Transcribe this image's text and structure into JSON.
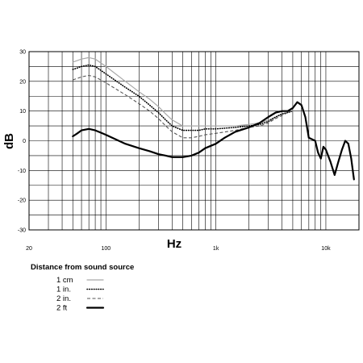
{
  "chart_data": {
    "type": "line",
    "xlabel": "Hz",
    "ylabel": "dB",
    "xscale": "log",
    "xlim": [
      20,
      20000
    ],
    "ylim": [
      -30,
      30
    ],
    "y_ticks": [
      30,
      20,
      10,
      0,
      -10,
      -20,
      -30
    ],
    "x_tick_labels": [
      {
        "value": 20,
        "label": "20"
      },
      {
        "value": 100,
        "label": "100"
      },
      {
        "value": 1000,
        "label": "1k"
      },
      {
        "value": 10000,
        "label": "10k"
      }
    ],
    "grid": true,
    "legend": {
      "title": "Distance from sound source",
      "placement": "bottom-left"
    },
    "series": [
      {
        "name": "1 cm",
        "color": "#a8a8a8",
        "style": "solid",
        "x": [
          50,
          55,
          60,
          70,
          80,
          100,
          150,
          200,
          250,
          300,
          350,
          400,
          500,
          600,
          700,
          800,
          1000,
          1500,
          2000,
          2500,
          3000,
          3500,
          4000,
          4500,
          5000
        ],
        "y": [
          26.5,
          27,
          27.5,
          28,
          27.5,
          25,
          20,
          16.5,
          14,
          11.5,
          9,
          7,
          5,
          5,
          5,
          5,
          5,
          5,
          5.5,
          6,
          7,
          8,
          9,
          9.5,
          10
        ]
      },
      {
        "name": "1 in.",
        "color": "#000000",
        "style": "dotted",
        "x": [
          50,
          55,
          60,
          70,
          80,
          100,
          150,
          200,
          250,
          300,
          350,
          400,
          500,
          600,
          700,
          800,
          1000,
          1500,
          2000,
          2500,
          3000,
          3500,
          4000,
          4500,
          5000
        ],
        "y": [
          24,
          24.5,
          25,
          25.5,
          25,
          22.5,
          18,
          15,
          12,
          9.5,
          7,
          5,
          3.5,
          3.5,
          3.5,
          4,
          4,
          4.5,
          5,
          5.5,
          6.5,
          8,
          9,
          9.5,
          10
        ]
      },
      {
        "name": "2 in.",
        "color": "#555555",
        "style": "dashed",
        "x": [
          50,
          55,
          60,
          70,
          80,
          100,
          150,
          200,
          250,
          300,
          350,
          400,
          500,
          600,
          700,
          800,
          1000,
          1500,
          2000,
          2500,
          3000,
          3500,
          4000,
          4500,
          5000
        ],
        "y": [
          20.5,
          21,
          21.5,
          22,
          21.5,
          19.5,
          15.5,
          12.5,
          10,
          7.5,
          5,
          3,
          1,
          1,
          1.5,
          2,
          2.5,
          3.5,
          4.5,
          5,
          6,
          7.5,
          8.5,
          9.5,
          10
        ]
      },
      {
        "name": "2 ft",
        "color": "#000000",
        "style": "bold",
        "x": [
          50,
          55,
          60,
          70,
          80,
          100,
          150,
          200,
          250,
          300,
          350,
          400,
          500,
          600,
          700,
          800,
          1000,
          1200,
          1500,
          2000,
          2500,
          3000,
          3500,
          4000,
          4500,
          5000,
          5500,
          6000,
          6500,
          7000,
          8000,
          8500,
          9000,
          9500,
          10000,
          11000,
          12000,
          13000,
          14000,
          15000,
          16000,
          17000,
          18000
        ],
        "y": [
          1.5,
          2.5,
          3.5,
          4,
          3.5,
          2,
          -1,
          -2.5,
          -3.5,
          -4.5,
          -5,
          -5.5,
          -5.5,
          -5,
          -4,
          -2.5,
          -1,
          1,
          3,
          4.5,
          6,
          8,
          9.5,
          10,
          10,
          11,
          13,
          12,
          8,
          1,
          0,
          -4,
          -6,
          -2,
          -3,
          -7,
          -11.5,
          -7,
          -3,
          0,
          -1,
          -6,
          -13
        ]
      }
    ]
  }
}
